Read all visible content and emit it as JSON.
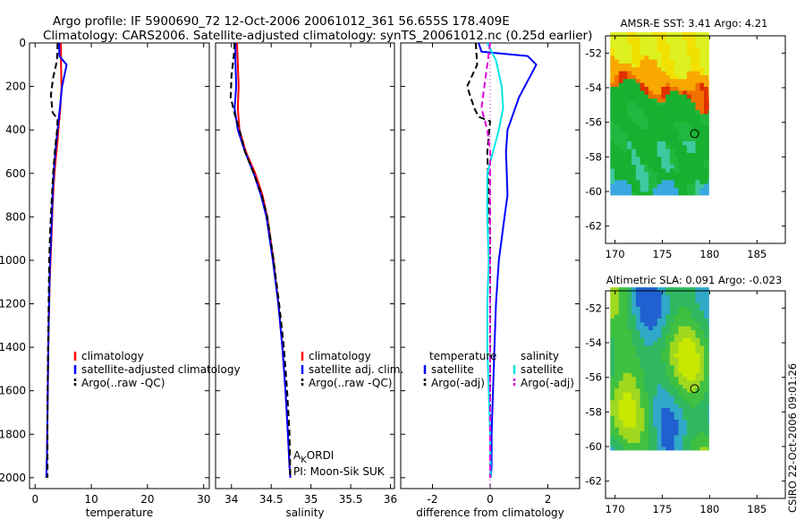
{
  "title_line1": "Argo profile: IF 5900690_72 12-Oct-2006 20061012_361 56.655S 178.409E",
  "title_line2": "Climatology: CARS2006. Satellite-adjusted climatology: synTS_20061012.nc (0.25d earlier)",
  "watermark": "CSIRO 22-Oct-2006 09:01:26",
  "colors": {
    "red": "#ff0000",
    "blue": "#0000ff",
    "black": "#000000",
    "cyan": "#00e5e5",
    "magenta": "#dd00dd"
  },
  "chart_data": [
    {
      "type": "line",
      "xlabel": "temperature",
      "xlim": [
        -1,
        31
      ],
      "ylim": [
        2050,
        0
      ],
      "xticks": [
        0,
        10,
        20,
        30
      ],
      "yticks": [
        0,
        200,
        400,
        600,
        800,
        1000,
        1200,
        1400,
        1600,
        1800,
        2000
      ],
      "legend": [
        "climatology",
        "satellite-adjusted climatology",
        "Argo(..raw -QC)"
      ],
      "series": [
        {
          "name": "climatology",
          "color": "red",
          "style": "solid",
          "x": [
            4.6,
            4.6,
            4.7,
            4.5,
            4.2,
            4.0,
            3.6,
            3.3,
            3.1,
            2.9,
            2.6,
            2.4,
            2.3,
            2.2,
            2.1,
            2.0
          ],
          "y": [
            0,
            100,
            200,
            300,
            380,
            450,
            550,
            650,
            750,
            900,
            1100,
            1300,
            1500,
            1700,
            1900,
            2000
          ]
        },
        {
          "name": "satellite-adjusted climatology",
          "color": "blue",
          "style": "solid",
          "x": [
            4.3,
            4.3,
            5.6,
            4.8,
            4.4,
            4.0,
            3.6,
            3.3,
            3.1,
            2.9,
            2.6,
            2.4,
            2.3,
            2.2,
            2.1,
            2.0
          ],
          "y": [
            0,
            60,
            100,
            200,
            300,
            400,
            500,
            600,
            700,
            850,
            1050,
            1300,
            1500,
            1700,
            1900,
            2000
          ]
        },
        {
          "name": "Argo(..raw -QC)",
          "color": "black",
          "style": "dashed",
          "x": [
            4.0,
            3.9,
            3.2,
            2.8,
            3.1,
            4.0,
            3.9,
            3.5,
            3.2,
            3.0,
            2.7,
            2.5,
            2.4,
            2.3,
            2.2,
            2.2
          ],
          "y": [
            0,
            80,
            160,
            240,
            320,
            350,
            400,
            500,
            600,
            700,
            850,
            1000,
            1200,
            1400,
            1700,
            2000
          ]
        }
      ]
    },
    {
      "type": "line",
      "xlabel": "salinity",
      "xlim": [
        33.8,
        36.05
      ],
      "ylim": [
        2050,
        0
      ],
      "xticks": [
        34,
        34.5,
        35,
        35.5,
        36
      ],
      "legend": [
        "climatology",
        "satellite adj. clim.",
        "Argo(..raw -QC)"
      ],
      "annotation": [
        "AKORDI",
        "PI: Moon-Sik SUK"
      ],
      "series": [
        {
          "name": "climatology",
          "color": "red",
          "style": "solid",
          "x": [
            34.07,
            34.08,
            34.09,
            34.08,
            34.1,
            34.18,
            34.3,
            34.39,
            34.45,
            34.53,
            34.59,
            34.64,
            34.68,
            34.71,
            34.73,
            34.74
          ],
          "y": [
            0,
            100,
            200,
            300,
            400,
            500,
            600,
            700,
            800,
            1000,
            1200,
            1400,
            1600,
            1800,
            1950,
            2000
          ]
        },
        {
          "name": "satellite adj. clim.",
          "color": "blue",
          "style": "solid",
          "x": [
            34.05,
            34.05,
            34.06,
            34.04,
            34.08,
            34.17,
            34.28,
            34.37,
            34.44,
            34.52,
            34.59,
            34.64,
            34.68,
            34.71,
            34.73,
            34.74
          ],
          "y": [
            0,
            80,
            200,
            300,
            400,
            500,
            600,
            700,
            800,
            1000,
            1200,
            1400,
            1600,
            1800,
            1950,
            2000
          ]
        },
        {
          "name": "Argo(..raw -QC)",
          "color": "black",
          "style": "dashed",
          "x": [
            34.04,
            34.03,
            34.0,
            33.99,
            34.05,
            34.1,
            34.17,
            34.28,
            34.38,
            34.45,
            34.53,
            34.6,
            34.66,
            34.7,
            34.73,
            34.74
          ],
          "y": [
            0,
            60,
            150,
            250,
            340,
            400,
            500,
            600,
            700,
            800,
            1000,
            1200,
            1400,
            1600,
            1800,
            2000
          ]
        }
      ]
    },
    {
      "type": "line",
      "xlabel": "difference from climatology",
      "xlim": [
        -3.1,
        3.1
      ],
      "ylim": [
        2050,
        0
      ],
      "xticks": [
        -2,
        0,
        2
      ],
      "legend_temperature_title": "temperature",
      "legend_salinity_title": "salinity",
      "legend": [
        "satellite",
        "Argo(-adj)",
        "satellite",
        "Argo(-adj)"
      ],
      "series": [
        {
          "name": "satellite",
          "color": "blue",
          "style": "solid",
          "x": [
            -0.4,
            -0.3,
            1.3,
            1.6,
            1.0,
            0.6,
            0.55,
            0.6,
            0.5,
            0.3,
            0.2,
            0.15,
            0.1,
            0.05,
            0.05,
            0.02
          ],
          "y": [
            0,
            40,
            60,
            100,
            250,
            400,
            500,
            700,
            800,
            1000,
            1200,
            1400,
            1600,
            1800,
            1950,
            2000
          ]
        },
        {
          "name": "Argo(-adj)",
          "color": "black",
          "style": "dashed",
          "x": [
            -0.5,
            -0.45,
            -0.8,
            -0.55,
            -0.4,
            0.0,
            -0.1,
            -0.05,
            0.0,
            0.0,
            0.0,
            0.0,
            0.0,
            0.0
          ],
          "y": [
            0,
            100,
            200,
            300,
            340,
            360,
            500,
            700,
            900,
            1100,
            1300,
            1500,
            1800,
            2000
          ]
        },
        {
          "name": "satellite",
          "color": "cyan",
          "style": "solid",
          "x": [
            -0.1,
            0.2,
            0.4,
            0.45,
            0.3,
            0.1,
            -0.1,
            -0.1,
            -0.05,
            -0.1,
            -0.1,
            -0.05,
            0.0,
            0.02
          ],
          "y": [
            0,
            80,
            200,
            300,
            400,
            500,
            600,
            800,
            1000,
            1200,
            1400,
            1600,
            1800,
            2000
          ]
        },
        {
          "name": "Argo(-adj)",
          "color": "magenta",
          "style": "dashed",
          "x": [
            0.0,
            -0.1,
            -0.2,
            -0.3,
            -0.1,
            0.0,
            0.0,
            0.0,
            0.0,
            0.0
          ],
          "y": [
            0,
            100,
            200,
            300,
            400,
            500,
            700,
            1000,
            1500,
            2000
          ]
        }
      ]
    },
    {
      "type": "heatmap",
      "title": "AMSR-E SST: 3.41 Argo: 4.21",
      "xlim": [
        169,
        188
      ],
      "ylim": [
        -63,
        -51
      ],
      "xticks": [
        170,
        175,
        180,
        185
      ],
      "yticks": [
        -52,
        -54,
        -56,
        -58,
        -60,
        -62
      ],
      "lon": [
        169.5,
        179.9
      ],
      "lat": [
        -60.2,
        -50.8
      ],
      "argo_marker": [
        178.41,
        -56.66
      ]
    },
    {
      "type": "heatmap",
      "title": "Altimetric SLA: 0.091 Argo: -0.023",
      "xlim": [
        169,
        188
      ],
      "ylim": [
        -63,
        -51
      ],
      "xticks": [
        170,
        175,
        180,
        185
      ],
      "yticks": [
        -52,
        -54,
        -56,
        -58,
        -60,
        -62
      ],
      "lon": [
        169.5,
        179.9
      ],
      "lat": [
        -60.2,
        -50.8
      ],
      "argo_marker": [
        178.41,
        -56.66
      ]
    }
  ]
}
